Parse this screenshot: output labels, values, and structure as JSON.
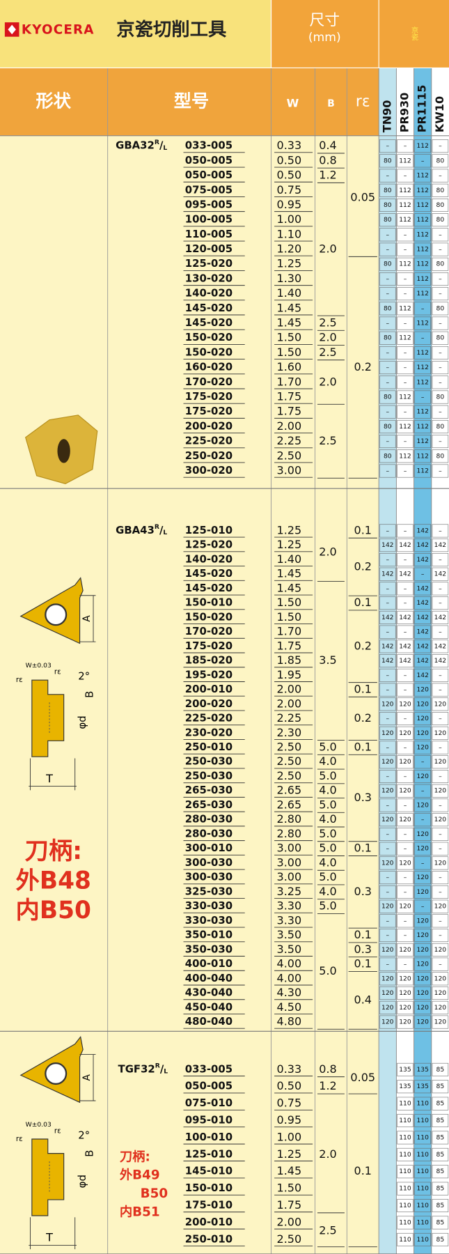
{
  "header": {
    "logo": "KYOCERA",
    "title": "京瓷切削工具",
    "dims": "尺寸",
    "unit": "(mm)",
    "brand": "京瓷",
    "shape": "形状",
    "model": "型号",
    "w": "W",
    "b": "B",
    "re": "rε",
    "grades": [
      "TN90",
      "PR930",
      "PR1115",
      "KW10"
    ]
  },
  "sections": [
    {
      "prefix": [
        "GBA32",
        "R",
        "/",
        "L"
      ],
      "rows": [
        [
          "033-005",
          "0.33",
          "0.4",
          "0.05",
          "–",
          "–",
          "112",
          "–"
        ],
        [
          "050-005",
          "0.50",
          "0.8",
          null,
          "80",
          "112",
          "–",
          "80"
        ],
        [
          "050-005",
          "0.50",
          "1.2",
          null,
          "–",
          "–",
          "112",
          "–"
        ],
        [
          "075-005",
          "0.75",
          "2.0",
          null,
          "80",
          "112",
          "112",
          "80"
        ],
        [
          "095-005",
          "0.95",
          null,
          null,
          "80",
          "112",
          "112",
          "80"
        ],
        [
          "100-005",
          "1.00",
          null,
          null,
          "80",
          "112",
          "112",
          "80"
        ],
        [
          "110-005",
          "1.10",
          null,
          null,
          "–",
          "–",
          "112",
          "–"
        ],
        [
          "120-005",
          "1.20",
          null,
          null,
          "–",
          "–",
          "112",
          "–"
        ],
        [
          "125-020",
          "1.25",
          null,
          "0.2",
          "80",
          "112",
          "112",
          "80"
        ],
        [
          "130-020",
          "1.30",
          null,
          null,
          "–",
          "–",
          "112",
          "–"
        ],
        [
          "140-020",
          "1.40",
          null,
          null,
          "–",
          "–",
          "112",
          "–"
        ],
        [
          "145-020",
          "1.45",
          null,
          null,
          "80",
          "112",
          "–",
          "80"
        ],
        [
          "145-020",
          "1.45",
          "2.5",
          null,
          "–",
          "–",
          "112",
          "–"
        ],
        [
          "150-020",
          "1.50",
          "2.0",
          null,
          "80",
          "112",
          "–",
          "80"
        ],
        [
          "150-020",
          "1.50",
          "2.5",
          null,
          "–",
          "–",
          "112",
          "–"
        ],
        [
          "160-020",
          "1.60",
          "2.0",
          null,
          "–",
          "–",
          "112",
          "–"
        ],
        [
          "170-020",
          "1.70",
          null,
          null,
          "–",
          "–",
          "112",
          "–"
        ],
        [
          "175-020",
          "1.75",
          null,
          null,
          "80",
          "112",
          "–",
          "80"
        ],
        [
          "175-020",
          "1.75",
          "2.5",
          null,
          "–",
          "–",
          "112",
          "–"
        ],
        [
          "200-020",
          "2.00",
          null,
          null,
          "80",
          "112",
          "112",
          "80"
        ],
        [
          "225-020",
          "2.25",
          null,
          null,
          "–",
          "–",
          "112",
          "–"
        ],
        [
          "250-020",
          "2.50",
          null,
          null,
          "80",
          "112",
          "112",
          "80"
        ],
        [
          "300-020",
          "3.00",
          null,
          null,
          "–",
          "–",
          "112",
          "–"
        ]
      ]
    },
    {
      "prefix": [
        "GBA43",
        "R",
        "/",
        "L"
      ],
      "note": [
        "刀柄:",
        "外B48",
        "内B50"
      ],
      "diagram": {
        "a": "A",
        "w": "W±0.03",
        "re": "rε",
        "angle": "2°",
        "b": "B",
        "d": "φd",
        "t": "T"
      },
      "rows": [
        [
          "125-010",
          "1.25",
          "2.0",
          "0.1",
          "–",
          "–",
          "142",
          "–"
        ],
        [
          "125-020",
          "1.25",
          null,
          "0.2",
          "142",
          "142",
          "142",
          "142"
        ],
        [
          "140-020",
          "1.40",
          null,
          null,
          "–",
          "–",
          "142",
          "–"
        ],
        [
          "145-020",
          "1.45",
          null,
          null,
          "142",
          "142",
          "–",
          "142"
        ],
        [
          "145-020",
          "1.45",
          "3.5",
          null,
          "–",
          "–",
          "142",
          "–"
        ],
        [
          "150-010",
          "1.50",
          null,
          "0.1",
          "–",
          "–",
          "142",
          "–"
        ],
        [
          "150-020",
          "1.50",
          null,
          "0.2",
          "142",
          "142",
          "142",
          "142"
        ],
        [
          "170-020",
          "1.70",
          null,
          null,
          "–",
          "–",
          "142",
          "–"
        ],
        [
          "175-020",
          "1.75",
          null,
          null,
          "142",
          "142",
          "142",
          "142"
        ],
        [
          "185-020",
          "1.85",
          null,
          null,
          "142",
          "142",
          "142",
          "142"
        ],
        [
          "195-020",
          "1.95",
          null,
          null,
          "–",
          "–",
          "142",
          "–"
        ],
        [
          "200-010",
          "2.00",
          null,
          "0.1",
          "–",
          "–",
          "120",
          "–"
        ],
        [
          "200-020",
          "2.00",
          null,
          "0.2",
          "120",
          "120",
          "120",
          "120"
        ],
        [
          "225-020",
          "2.25",
          null,
          null,
          "–",
          "–",
          "120",
          "–"
        ],
        [
          "230-020",
          "2.30",
          null,
          null,
          "120",
          "120",
          "120",
          "120"
        ],
        [
          "250-010",
          "2.50",
          "5.0",
          "0.1",
          "–",
          "–",
          "120",
          "–"
        ],
        [
          "250-030",
          "2.50",
          "4.0",
          "0.3",
          "120",
          "120",
          "–",
          "120"
        ],
        [
          "250-030",
          "2.50",
          "5.0",
          null,
          "–",
          "–",
          "120",
          "–"
        ],
        [
          "265-030",
          "2.65",
          "4.0",
          null,
          "120",
          "120",
          "–",
          "120"
        ],
        [
          "265-030",
          "2.65",
          "5.0",
          null,
          "–",
          "–",
          "120",
          "–"
        ],
        [
          "280-030",
          "2.80",
          "4.0",
          null,
          "120",
          "120",
          "–",
          "120"
        ],
        [
          "280-030",
          "2.80",
          "5.0",
          null,
          "–",
          "–",
          "120",
          "–"
        ],
        [
          "300-010",
          "3.00",
          "5.0",
          "0.1",
          "–",
          "–",
          "120",
          "–"
        ],
        [
          "300-030",
          "3.00",
          "4.0",
          "0.3",
          "120",
          "120",
          "–",
          "120"
        ],
        [
          "300-030",
          "3.00",
          "5.0",
          null,
          "–",
          "–",
          "120",
          "–"
        ],
        [
          "325-030",
          "3.25",
          "4.0",
          null,
          "–",
          "–",
          "120",
          "–"
        ],
        [
          "330-030",
          "3.30",
          "5.0",
          null,
          "120",
          "120",
          "–",
          "120"
        ],
        [
          "330-030",
          "3.30",
          "5.0",
          null,
          "–",
          "–",
          "120",
          "–"
        ],
        [
          "350-010",
          "3.50",
          null,
          "0.1",
          "–",
          "–",
          "120",
          "–"
        ],
        [
          "350-030",
          "3.50",
          null,
          "0.3",
          "120",
          "120",
          "120",
          "120"
        ],
        [
          "400-010",
          "4.00",
          null,
          "0.1",
          "–",
          "–",
          "120",
          "–"
        ],
        [
          "400-040",
          "4.00",
          null,
          "0.4",
          "120",
          "120",
          "120",
          "120"
        ],
        [
          "430-040",
          "4.30",
          null,
          null,
          "120",
          "120",
          "120",
          "120"
        ],
        [
          "450-040",
          "4.50",
          null,
          null,
          "120",
          "120",
          "120",
          "120"
        ],
        [
          "480-040",
          "4.80",
          null,
          null,
          "120",
          "120",
          "120",
          "120"
        ]
      ]
    },
    {
      "prefix": [
        "TGF32",
        "R",
        "/",
        "L"
      ],
      "note": [
        "刀柄:",
        "外B49",
        "B50",
        "内B51"
      ],
      "diagram": {
        "a": "A",
        "w": "W±0.03",
        "re": "rε",
        "angle": "2°",
        "b": "B",
        "d": "φd",
        "t": "T"
      },
      "rows": [
        [
          "033-005",
          "0.33",
          "0.8",
          "0.05",
          null,
          "135",
          "135",
          "85"
        ],
        [
          "050-005",
          "0.50",
          "1.2",
          null,
          null,
          "135",
          "135",
          "85"
        ],
        [
          "075-010",
          "0.75",
          "2.0",
          "0.1",
          null,
          "110",
          "110",
          "85"
        ],
        [
          "095-010",
          "0.95",
          null,
          null,
          null,
          "110",
          "110",
          "85"
        ],
        [
          "100-010",
          "1.00",
          null,
          null,
          null,
          "110",
          "110",
          "85"
        ],
        [
          "125-010",
          "1.25",
          null,
          null,
          null,
          "110",
          "110",
          "85"
        ],
        [
          "145-010",
          "1.45",
          null,
          null,
          null,
          "110",
          "110",
          "85"
        ],
        [
          "150-010",
          "1.50",
          null,
          null,
          null,
          "110",
          "110",
          "85"
        ],
        [
          "175-010",
          "1.75",
          null,
          null,
          null,
          "110",
          "110",
          "85"
        ],
        [
          "200-010",
          "2.00",
          "2.5",
          null,
          null,
          "110",
          "110",
          "85"
        ],
        [
          "250-010",
          "2.50",
          null,
          null,
          null,
          "110",
          "110",
          "85"
        ]
      ]
    }
  ]
}
